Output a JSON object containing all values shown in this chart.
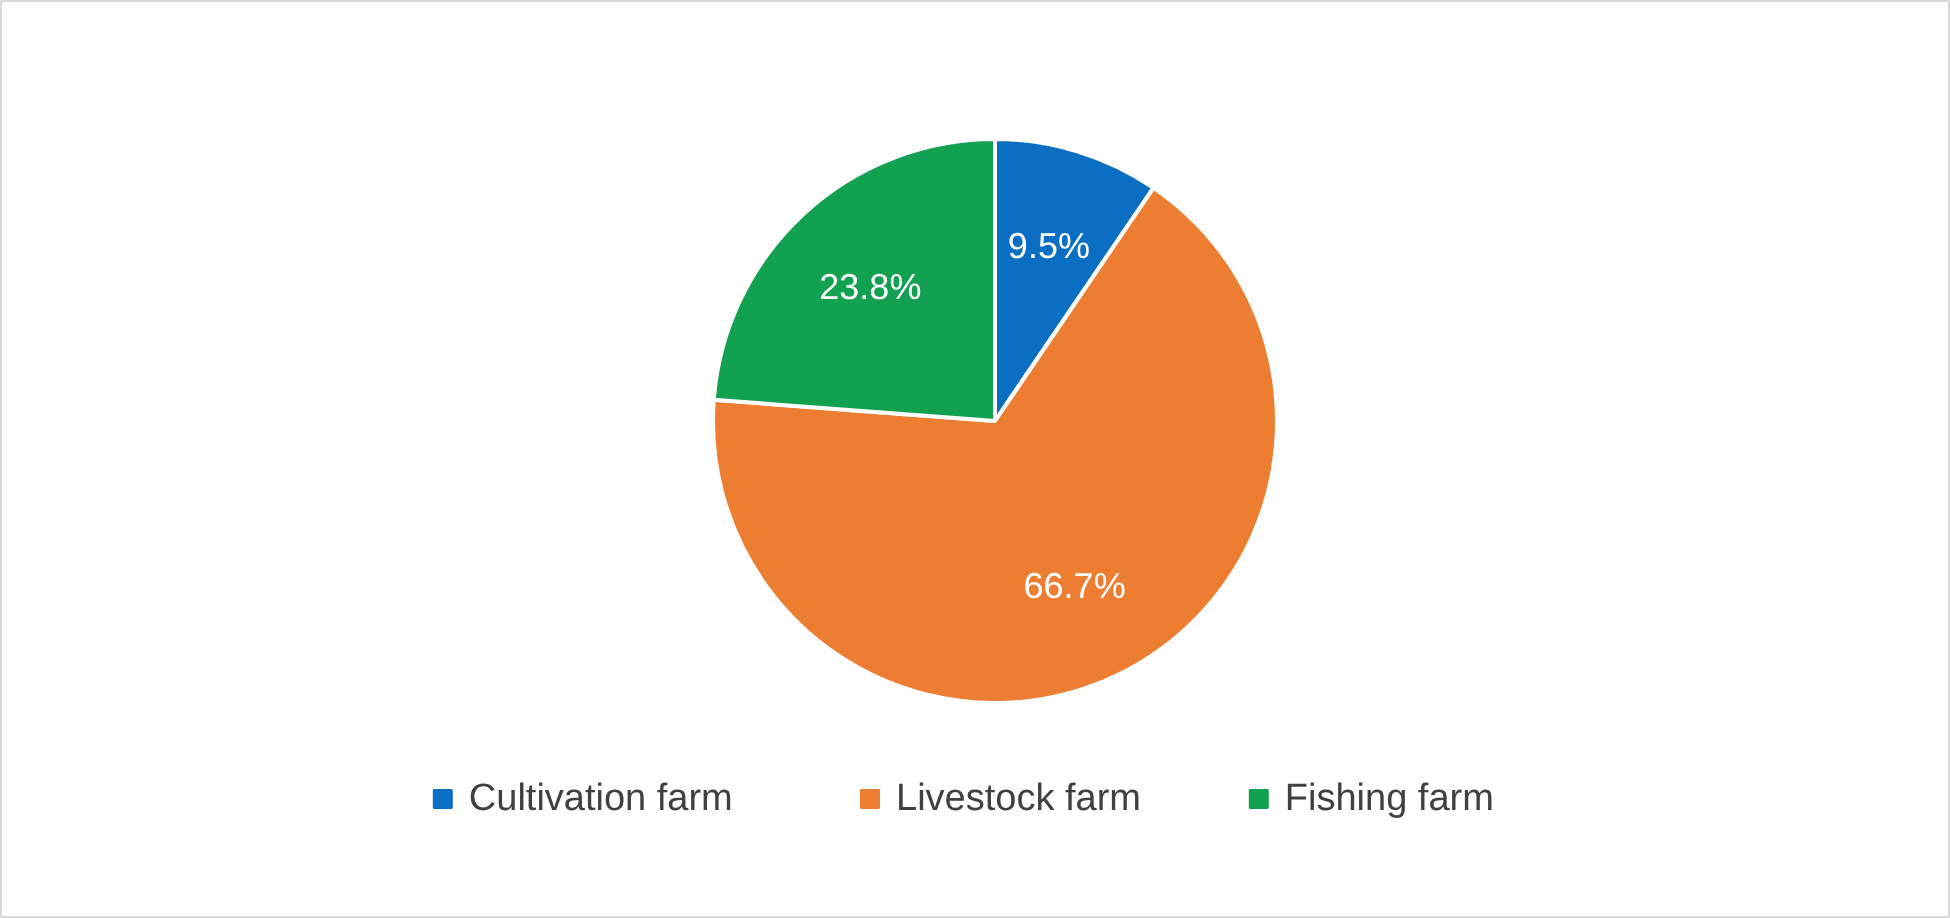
{
  "chart_data": {
    "type": "pie",
    "categories": [
      "Cultivation farm",
      "Livestock farm",
      "Fishing farm"
    ],
    "values": [
      9.5,
      66.7,
      23.8
    ],
    "colors": [
      "#0a6fc2",
      "#ed7d31",
      "#12a150"
    ],
    "value_labels": [
      "9.5%",
      "66.7%",
      "23.8%"
    ],
    "legend": "bottom"
  }
}
